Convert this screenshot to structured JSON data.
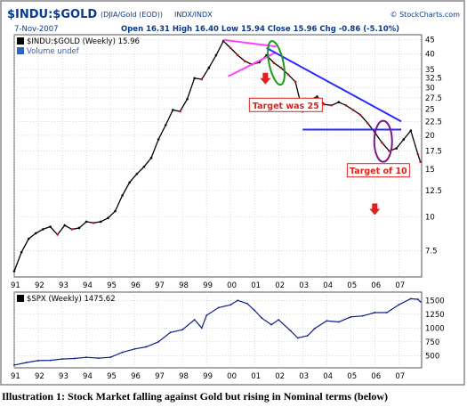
{
  "header": {
    "symbol_title": "$INDU:$GOLD",
    "description": "(DJIA/Gold (EOD))",
    "exchange": "INDX/INDX",
    "brand": "© StockCharts.com",
    "date": "7-Nov-2007",
    "ohlc_text": "Open 16.31  High 16.40  Low 15.94  Close 15.96  Chg -0.86 (-5.10%)"
  },
  "caption": "Illustration 1: Stock Market falling against Gold but rising in Nominal terms (below)",
  "colors": {
    "frame": "#8a8a8a",
    "header_blue": "#0a3a8c",
    "price_line": "#000000",
    "price_down": "#c8101c",
    "trendline_blue": "#2a2aff",
    "triangle_magenta": "#ff40ff",
    "ellipse_green": "#1a9a1a",
    "ellipse_purple": "#7a1a8a",
    "callout_red": "#e0201a",
    "spx_line": "#10208a",
    "grid": "#bfbfbf"
  },
  "chart_data": [
    {
      "type": "line",
      "legend": [
        "$INDU:$GOLD (Weekly) 15.96",
        "Volume undef"
      ],
      "scale": "log",
      "x_ticks": [
        "91",
        "92",
        "93",
        "94",
        "95",
        "96",
        "97",
        "98",
        "99",
        "00",
        "01",
        "02",
        "03",
        "04",
        "05",
        "06",
        "07"
      ],
      "y_ticks": [
        45,
        40,
        35,
        32.5,
        30,
        27.5,
        25,
        22.5,
        20,
        17.5,
        15,
        12.5,
        10,
        7.5
      ],
      "ylim": [
        6.0,
        47
      ],
      "xlim": [
        1991.0,
        2007.95
      ],
      "series": [
        {
          "name": "$INDU:$GOLD (Weekly)",
          "x": [
            1991.0,
            1991.3,
            1991.6,
            1991.9,
            1992.2,
            1992.5,
            1992.8,
            1993.1,
            1993.4,
            1993.7,
            1994.0,
            1994.3,
            1994.6,
            1994.9,
            1995.2,
            1995.5,
            1995.8,
            1996.1,
            1996.4,
            1996.7,
            1997.0,
            1997.3,
            1997.6,
            1997.9,
            1998.2,
            1998.5,
            1998.8,
            1999.1,
            1999.4,
            1999.7,
            2000.0,
            2000.3,
            2000.6,
            2000.9,
            2001.2,
            2001.5,
            2001.8,
            2002.1,
            2002.4,
            2002.7,
            2003.0,
            2003.3,
            2003.6,
            2003.9,
            2004.2,
            2004.5,
            2004.8,
            2005.1,
            2005.4,
            2005.7,
            2006.0,
            2006.3,
            2006.6,
            2006.9,
            2007.2,
            2007.5,
            2007.8,
            2007.9
          ],
          "values": [
            6.3,
            7.4,
            8.3,
            8.7,
            9.0,
            9.2,
            8.6,
            9.3,
            9.0,
            9.1,
            9.6,
            9.5,
            9.6,
            9.9,
            10.5,
            12.0,
            13.4,
            14.4,
            15.3,
            16.5,
            19.3,
            21.8,
            24.8,
            24.5,
            27.2,
            32.5,
            32.2,
            35.5,
            39.5,
            44.5,
            42.0,
            39.5,
            37.5,
            36.5,
            37.2,
            39.5,
            37.0,
            35.5,
            33.5,
            31.5,
            24.5,
            27.0,
            27.8,
            26.0,
            25.8,
            26.5,
            25.8,
            24.8,
            23.8,
            22.2,
            20.5,
            18.8,
            17.5,
            17.9,
            19.3,
            20.8,
            17.0,
            15.96
          ]
        }
      ],
      "annotations": [
        {
          "text": "Target was 25"
        },
        {
          "text": "Target of 10"
        }
      ]
    },
    {
      "type": "line",
      "legend": [
        "$SPX (Weekly) 1475.62"
      ],
      "x_ticks": [
        "91",
        "92",
        "93",
        "94",
        "95",
        "96",
        "97",
        "98",
        "99",
        "00",
        "01",
        "02",
        "03",
        "04",
        "05",
        "06",
        "07"
      ],
      "y_ticks": [
        1500,
        1250,
        1000,
        750,
        500
      ],
      "ylim": [
        280,
        1650
      ],
      "xlim": [
        1991.0,
        2007.95
      ],
      "series": [
        {
          "name": "$SPX (Weekly)",
          "x": [
            1991.0,
            1991.5,
            1992.0,
            1992.5,
            1993.0,
            1993.5,
            1994.0,
            1994.5,
            1995.0,
            1995.5,
            1996.0,
            1996.5,
            1997.0,
            1997.5,
            1998.0,
            1998.5,
            1998.8,
            1999.0,
            1999.5,
            2000.0,
            2000.3,
            2000.7,
            2001.0,
            2001.3,
            2001.7,
            2002.0,
            2002.5,
            2002.8,
            2003.2,
            2003.5,
            2004.0,
            2004.5,
            2005.0,
            2005.5,
            2006.0,
            2006.5,
            2007.0,
            2007.5,
            2007.8,
            2007.9
          ],
          "values": [
            330,
            375,
            410,
            415,
            440,
            450,
            470,
            455,
            470,
            560,
            620,
            660,
            750,
            920,
            970,
            1150,
            1000,
            1230,
            1370,
            1420,
            1500,
            1440,
            1320,
            1180,
            1060,
            1150,
            950,
            820,
            860,
            990,
            1130,
            1110,
            1200,
            1220,
            1280,
            1280,
            1420,
            1530,
            1520,
            1475
          ]
        }
      ]
    }
  ]
}
